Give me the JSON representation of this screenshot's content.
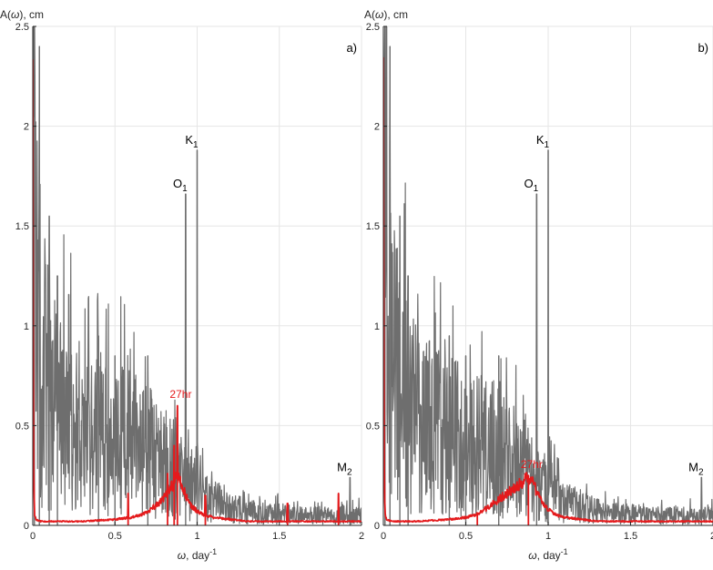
{
  "colors": {
    "gray_series": "#6e6e6e",
    "red_series": "#e41a1c",
    "grid": "#e6e6e6",
    "axis": "#262626"
  },
  "chart_data": [
    {
      "type": "line",
      "panel_label": "a)",
      "ylabel_main": "A(",
      "ylabel_symbol": "ω",
      "ylabel_tail": "), cm",
      "xlabel_symbol": "ω",
      "xlabel_main": ", day",
      "xlabel_exp": "-1",
      "xlim": [
        0,
        2
      ],
      "ylim": [
        0,
        2.5
      ],
      "xticks": [
        0,
        0.5,
        1,
        1.5,
        2
      ],
      "xtick_labels": [
        "0",
        "0.5",
        "1",
        "1.5",
        "2"
      ],
      "yticks": [
        0,
        0.5,
        1,
        1.5,
        2,
        2.5
      ],
      "ytick_labels": [
        "0",
        "0.5",
        "1",
        "1.5",
        "2",
        "2.5"
      ],
      "grid": true,
      "series": [
        {
          "color": "#6e6e6e",
          "x": [
            0,
            0.02,
            0.05,
            0.08,
            0.12,
            0.18,
            0.25,
            0.32,
            0.4,
            0.48,
            0.55,
            0.62,
            0.7,
            0.78,
            0.85,
            0.9,
            0.95,
            1.0,
            1.1,
            1.2,
            1.3,
            1.4,
            1.5,
            1.6,
            1.7,
            1.8,
            1.9,
            2.0
          ],
          "y": [
            1.6,
            1.2,
            0.9,
            0.75,
            0.65,
            0.55,
            0.5,
            0.47,
            0.45,
            0.43,
            0.42,
            0.4,
            0.37,
            0.33,
            0.28,
            0.24,
            0.2,
            0.17,
            0.12,
            0.09,
            0.07,
            0.06,
            0.06,
            0.05,
            0.05,
            0.05,
            0.05,
            0.05
          ],
          "spikes": [
            {
              "x": 0.01,
              "y": 2.5
            },
            {
              "x": 0.04,
              "y": 2.4
            },
            {
              "x": 0.1,
              "y": 1.55
            },
            {
              "x": 0.15,
              "y": 1.25
            },
            {
              "x": 0.4,
              "y": 0.95
            },
            {
              "x": 0.5,
              "y": 0.85
            },
            {
              "x": 0.7,
              "y": 0.85
            },
            {
              "x": 0.93,
              "y": 1.66
            },
            {
              "x": 1.0,
              "y": 1.88
            },
            {
              "x": 1.93,
              "y": 0.24
            }
          ]
        },
        {
          "color": "#e41a1c",
          "x": [
            0,
            0.004,
            0.01,
            0.02,
            0.05,
            0.1,
            0.2,
            0.3,
            0.4,
            0.5,
            0.6,
            0.65,
            0.7,
            0.75,
            0.8,
            0.85,
            0.88,
            0.9,
            0.93,
            0.96,
            1.0,
            1.05,
            1.1,
            1.2,
            1.3,
            1.4,
            1.5,
            1.6,
            1.7,
            1.8,
            1.9,
            2.0
          ],
          "y": [
            2.5,
            0.35,
            0.06,
            0.03,
            0.02,
            0.02,
            0.02,
            0.02,
            0.025,
            0.03,
            0.04,
            0.05,
            0.07,
            0.1,
            0.14,
            0.2,
            0.26,
            0.22,
            0.15,
            0.1,
            0.07,
            0.05,
            0.04,
            0.03,
            0.02,
            0.02,
            0.02,
            0.02,
            0.02,
            0.02,
            0.02,
            0.02
          ],
          "spikes": [
            {
              "x": 0.58,
              "y": 0.16
            },
            {
              "x": 0.82,
              "y": 0.26
            },
            {
              "x": 0.86,
              "y": 0.4
            },
            {
              "x": 0.88,
              "y": 0.6
            },
            {
              "x": 1.05,
              "y": 0.15
            },
            {
              "x": 1.55,
              "y": 0.11
            },
            {
              "x": 1.86,
              "y": 0.16
            }
          ]
        }
      ],
      "annotations": [
        {
          "text": "O",
          "sub": "1",
          "x": 0.93,
          "y": 1.66,
          "color": "#000000"
        },
        {
          "text": "K",
          "sub": "1",
          "x": 1.0,
          "y": 1.88,
          "color": "#000000"
        },
        {
          "text": "M",
          "sub": "2",
          "x": 1.93,
          "y": 0.24,
          "color": "#000000"
        },
        {
          "text": "27hr",
          "sub": "",
          "x": 0.9,
          "y": 0.62,
          "color": "#e41a1c"
        }
      ]
    },
    {
      "type": "line",
      "panel_label": "b)",
      "ylabel_main": "A(",
      "ylabel_symbol": "ω",
      "ylabel_tail": "), cm",
      "xlabel_symbol": "ω",
      "xlabel_main": ", day",
      "xlabel_exp": "-1",
      "xlim": [
        0,
        2
      ],
      "ylim": [
        0,
        2.5
      ],
      "xticks": [
        0,
        0.5,
        1,
        1.5,
        2
      ],
      "xtick_labels": [
        "0",
        "0.5",
        "1",
        "1.5",
        "2"
      ],
      "yticks": [
        0,
        0.5,
        1,
        1.5,
        2,
        2.5
      ],
      "ytick_labels": [
        "0",
        "0.5",
        "1",
        "1.5",
        "2",
        "2.5"
      ],
      "grid": true,
      "series": [
        {
          "color": "#6e6e6e",
          "x": [
            0,
            0.02,
            0.05,
            0.08,
            0.12,
            0.18,
            0.25,
            0.32,
            0.4,
            0.48,
            0.55,
            0.62,
            0.7,
            0.78,
            0.85,
            0.9,
            0.95,
            1.0,
            1.1,
            1.2,
            1.3,
            1.4,
            1.5,
            1.6,
            1.7,
            1.8,
            1.9,
            2.0
          ],
          "y": [
            1.6,
            1.2,
            0.9,
            0.75,
            0.65,
            0.55,
            0.5,
            0.47,
            0.45,
            0.43,
            0.42,
            0.4,
            0.37,
            0.33,
            0.28,
            0.24,
            0.2,
            0.17,
            0.12,
            0.09,
            0.07,
            0.06,
            0.06,
            0.05,
            0.05,
            0.05,
            0.05,
            0.05
          ],
          "spikes": [
            {
              "x": 0.01,
              "y": 2.5
            },
            {
              "x": 0.04,
              "y": 2.4
            },
            {
              "x": 0.1,
              "y": 1.55
            },
            {
              "x": 0.15,
              "y": 1.25
            },
            {
              "x": 0.4,
              "y": 0.95
            },
            {
              "x": 0.5,
              "y": 0.85
            },
            {
              "x": 0.7,
              "y": 0.85
            },
            {
              "x": 0.93,
              "y": 1.66
            },
            {
              "x": 1.0,
              "y": 1.88
            },
            {
              "x": 1.93,
              "y": 0.24
            }
          ]
        },
        {
          "color": "#e41a1c",
          "x": [
            0,
            0.004,
            0.01,
            0.02,
            0.05,
            0.1,
            0.2,
            0.3,
            0.4,
            0.5,
            0.55,
            0.6,
            0.65,
            0.7,
            0.75,
            0.8,
            0.85,
            0.88,
            0.9,
            0.93,
            0.96,
            1.0,
            1.05,
            1.1,
            1.2,
            1.3,
            1.4,
            1.5,
            1.6,
            1.7,
            1.8,
            1.9,
            2.0
          ],
          "y": [
            2.5,
            0.35,
            0.06,
            0.03,
            0.02,
            0.02,
            0.02,
            0.025,
            0.03,
            0.04,
            0.05,
            0.07,
            0.1,
            0.13,
            0.16,
            0.19,
            0.22,
            0.24,
            0.22,
            0.17,
            0.12,
            0.08,
            0.05,
            0.04,
            0.03,
            0.02,
            0.02,
            0.02,
            0.02,
            0.02,
            0.02,
            0.02,
            0.02
          ],
          "spikes": [
            {
              "x": 0.57,
              "y": 0.06
            },
            {
              "x": 0.88,
              "y": 0.25
            }
          ]
        }
      ],
      "annotations": [
        {
          "text": "O",
          "sub": "1",
          "x": 0.93,
          "y": 1.66,
          "color": "#000000"
        },
        {
          "text": "K",
          "sub": "1",
          "x": 1.0,
          "y": 1.88,
          "color": "#000000"
        },
        {
          "text": "M",
          "sub": "2",
          "x": 1.93,
          "y": 0.24,
          "color": "#000000"
        },
        {
          "text": "27hr",
          "sub": "",
          "x": 0.9,
          "y": 0.27,
          "color": "#e41a1c"
        }
      ]
    }
  ]
}
